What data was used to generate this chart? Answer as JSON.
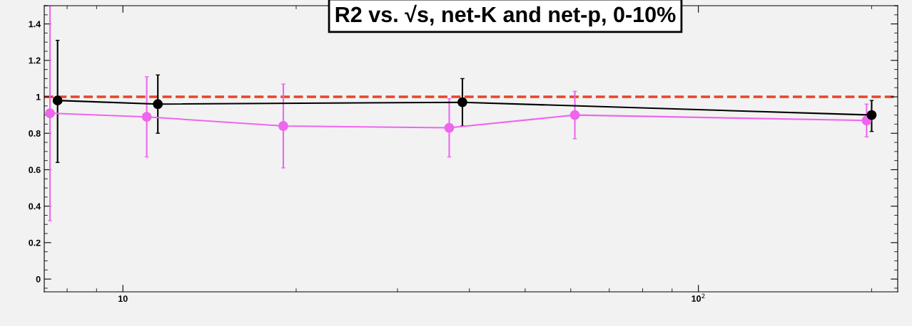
{
  "chart_data": {
    "type": "line",
    "title": "R2 vs. √s, net-K and net-p, 0-10%",
    "log": "x",
    "grid": false,
    "marker": "circle",
    "line_style": "solid",
    "xlim": [
      7.3,
      222
    ],
    "xticks": [
      10,
      {
        "value": 100,
        "label": "10$^{2}$"
      }
    ],
    "ylim": [
      -0.07,
      1.5
    ],
    "yticks": [
      0,
      0.2,
      0.4,
      0.6,
      0.8,
      1,
      1.2,
      1.4
    ],
    "series": [
      {
        "color": "#ee66ee",
        "x": [
          7.47,
          11.0,
          19.0,
          36.9,
          61,
          196
        ],
        "values": [
          0.91,
          0.89,
          0.84,
          0.83,
          0.9,
          0.87
        ],
        "errors": [
          [
            0.32,
            1.5
          ],
          [
            0.67,
            1.11
          ],
          [
            0.61,
            1.07
          ],
          [
            0.67,
            0.99
          ],
          [
            0.77,
            1.03
          ],
          [
            0.78,
            0.96
          ]
        ]
      },
      {
        "color": "#000000",
        "x": [
          7.7,
          11.5,
          38.9,
          200
        ],
        "values": [
          0.98,
          0.96,
          0.97,
          0.9
        ],
        "errors": [
          [
            0.64,
            1.31
          ],
          [
            0.8,
            1.12
          ],
          [
            0.84,
            1.1
          ],
          [
            0.81,
            0.98
          ]
        ]
      }
    ],
    "ref_lines": [
      {
        "axis": "y",
        "value": 1,
        "color": "#e8442a",
        "line_style": "dashed"
      }
    ]
  }
}
